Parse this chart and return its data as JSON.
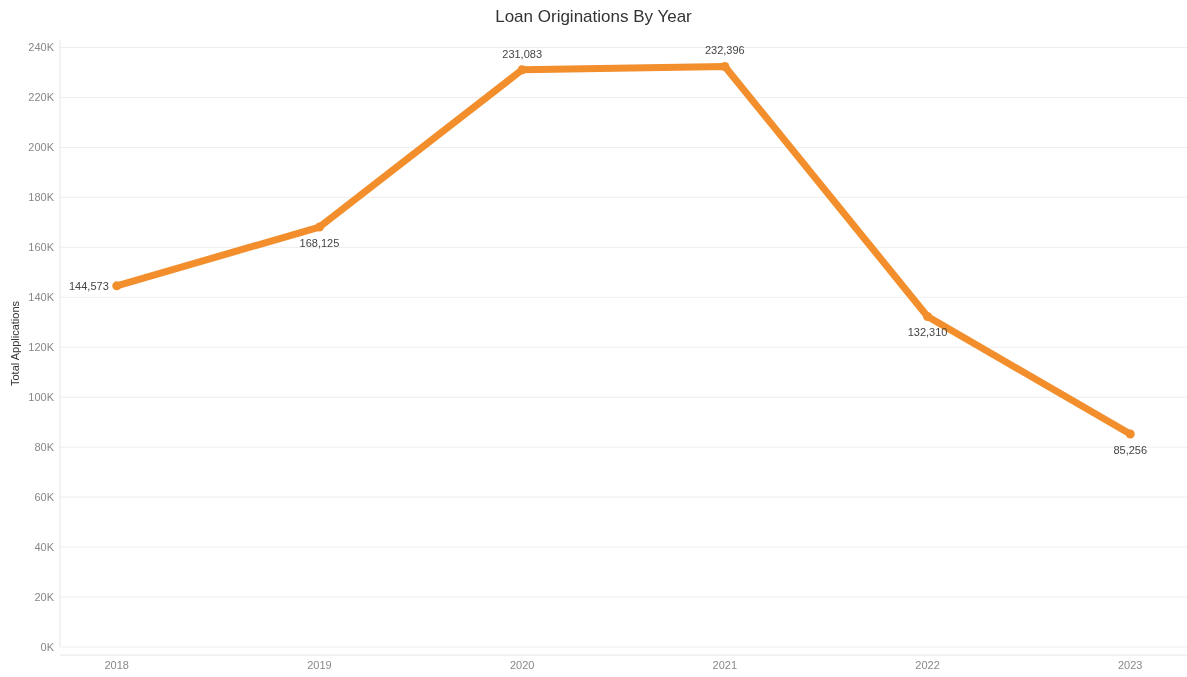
{
  "chart_data": {
    "type": "line",
    "title": "Loan Originations By Year",
    "ylabel": "Total Applications",
    "categories": [
      "2018",
      "2019",
      "2020",
      "2021",
      "2022",
      "2023"
    ],
    "series": [
      {
        "color": "#f28e2b",
        "values": [
          144573,
          168125,
          231083,
          232396,
          132310,
          85256
        ],
        "value_labels": [
          "144,573",
          "168,125",
          "231,083",
          "232,396",
          "132,310",
          "85,256"
        ]
      }
    ],
    "ylim": [
      0,
      243000
    ],
    "yticks": [
      {
        "value": 0,
        "label": "0K"
      },
      {
        "value": 20000,
        "label": "20K"
      },
      {
        "value": 40000,
        "label": "40K"
      },
      {
        "value": 60000,
        "label": "60K"
      },
      {
        "value": 80000,
        "label": "80K"
      },
      {
        "value": 100000,
        "label": "100K"
      },
      {
        "value": 120000,
        "label": "120K"
      },
      {
        "value": 140000,
        "label": "140K"
      },
      {
        "value": 160000,
        "label": "160K"
      },
      {
        "value": 180000,
        "label": "180K"
      },
      {
        "value": 200000,
        "label": "200K"
      },
      {
        "value": 220000,
        "label": "220K"
      },
      {
        "value": 240000,
        "label": "240K"
      }
    ],
    "grid": "y",
    "marker": "circle",
    "line_style": "solid"
  }
}
